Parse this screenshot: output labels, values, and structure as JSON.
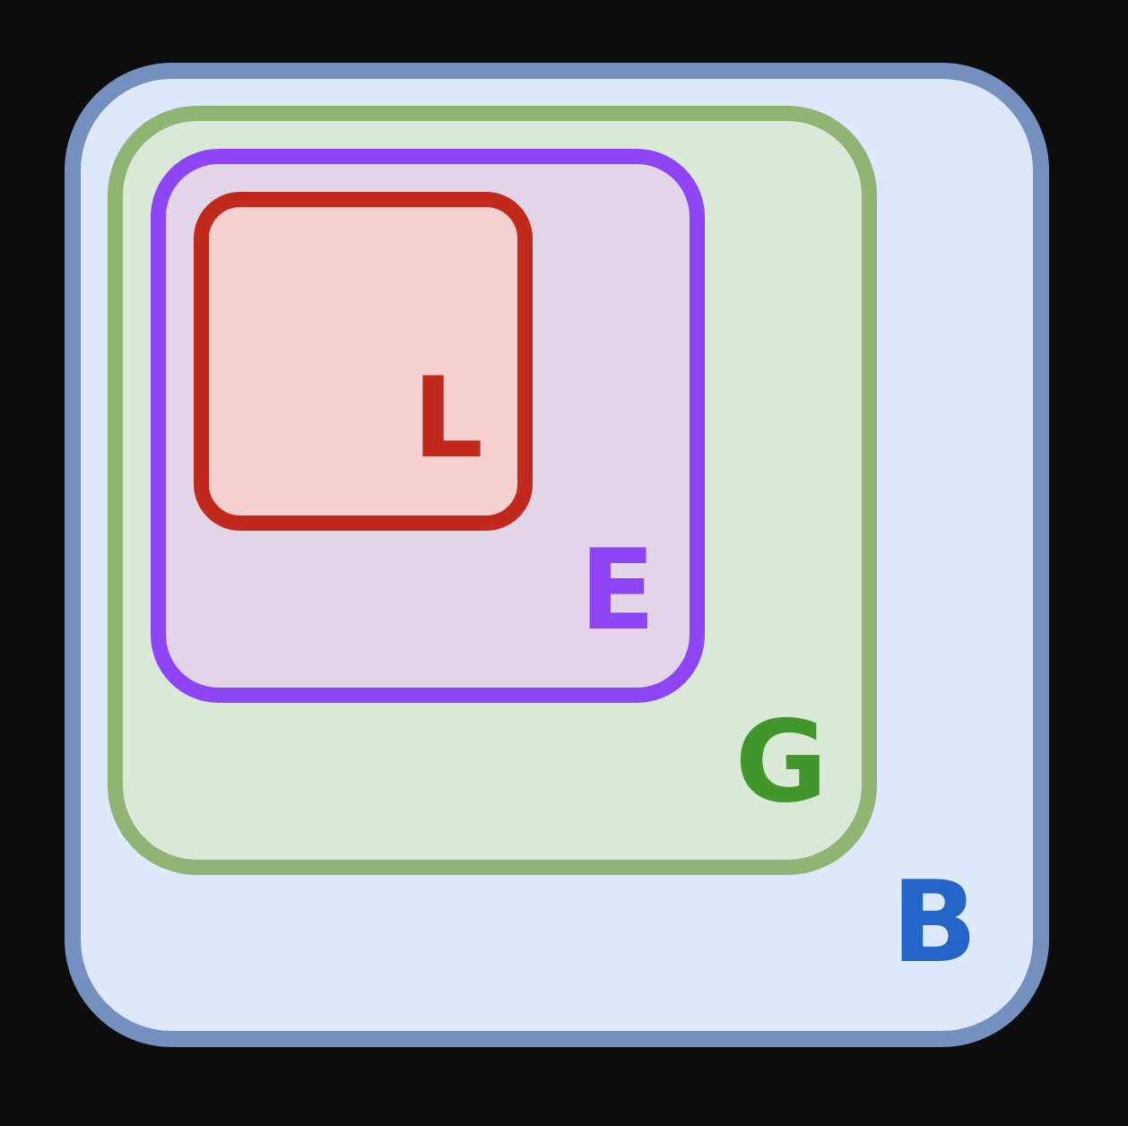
{
  "diagram": {
    "boxes": [
      {
        "id": "B",
        "label": "B",
        "color": "#2365c8",
        "border": "#7390bf",
        "fill": "#dde8fa"
      },
      {
        "id": "G",
        "label": "G",
        "color": "#42972a",
        "border": "#90b474",
        "fill": "#dae8d8"
      },
      {
        "id": "E",
        "label": "E",
        "color": "#8c44f5",
        "border": "#8c44f5",
        "fill": "#e2d5e8"
      },
      {
        "id": "L",
        "label": "L",
        "color": "#c1291d",
        "border": "#c1291d",
        "fill": "#f4d1cf"
      }
    ],
    "nesting": [
      "B",
      "G",
      "E",
      "L"
    ]
  }
}
